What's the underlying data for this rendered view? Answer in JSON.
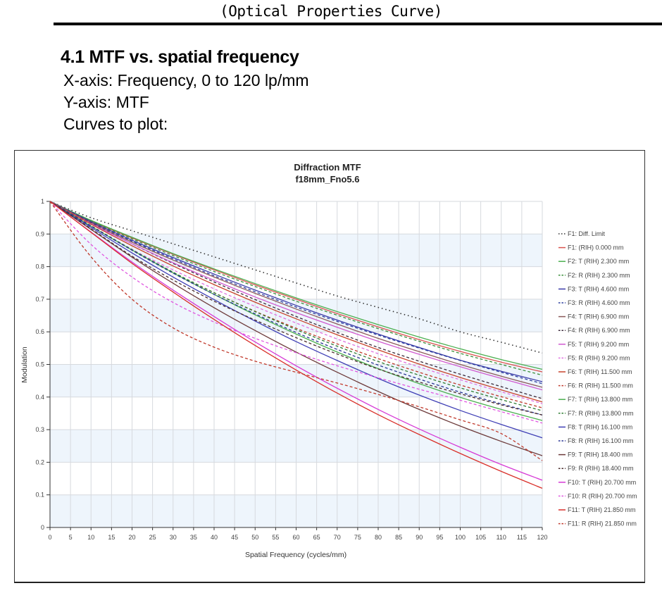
{
  "document": {
    "header": "(Optical Properties Curve)",
    "section_title": "4.1 MTF vs. spatial frequency",
    "lines": [
      "X-axis: Frequency, 0 to 120 lp/mm",
      "Y-axis: MTF",
      "Curves to plot:"
    ]
  },
  "chart_data": {
    "type": "line",
    "title": "Diffraction MTF",
    "subtitle": "f18mm_Fno5.6",
    "xlabel": "Spatial Frequency (cycles/mm)",
    "ylabel": "Modulation",
    "xlim": [
      0,
      120
    ],
    "ylim": [
      0,
      1
    ],
    "grid": true,
    "legend_position": "right",
    "x_ticks": [
      "0",
      "5",
      "10",
      "15",
      "20",
      "25",
      "30",
      "35",
      "40",
      "45",
      "50",
      "55",
      "60",
      "65",
      "70",
      "75",
      "80",
      "85",
      "90",
      "95",
      "100",
      "105",
      "110",
      "115",
      "120"
    ],
    "y_ticks": [
      "0",
      "0.1",
      "0.2",
      "0.3",
      "0.4",
      "0.5",
      "0.6",
      "0.7",
      "0.8",
      "0.9",
      "1"
    ],
    "x": [
      0,
      10,
      20,
      30,
      40,
      50,
      60,
      70,
      80,
      90,
      100,
      110,
      120
    ],
    "series": [
      {
        "name": "F1: Diff. Limit",
        "color": "#333333",
        "style": "dotted",
        "values": [
          1,
          0.95,
          0.91,
          0.87,
          0.83,
          0.79,
          0.75,
          0.71,
          0.675,
          0.64,
          0.6,
          0.568,
          0.535
        ]
      },
      {
        "name": "F1: (RIH) 0.000 mm",
        "color": "#d9534f",
        "style": "solid",
        "values": [
          1,
          0.94,
          0.888,
          0.838,
          0.79,
          0.744,
          0.7,
          0.656,
          0.615,
          0.576,
          0.54,
          0.507,
          0.477
        ]
      },
      {
        "name": "F2: T (RIH) 2.300 mm",
        "color": "#4caf50",
        "style": "solid",
        "values": [
          1,
          0.942,
          0.89,
          0.84,
          0.793,
          0.748,
          0.704,
          0.662,
          0.622,
          0.584,
          0.548,
          0.515,
          0.485
        ]
      },
      {
        "name": "F2: R (RIH) 2.300 mm",
        "color": "#3a8f3a",
        "style": "dashed",
        "values": [
          1,
          0.94,
          0.885,
          0.834,
          0.785,
          0.739,
          0.694,
          0.651,
          0.61,
          0.571,
          0.534,
          0.5,
          0.467
        ]
      },
      {
        "name": "F3: T (RIH) 4.600 mm",
        "color": "#3a3aa8",
        "style": "solid",
        "values": [
          1,
          0.938,
          0.881,
          0.828,
          0.777,
          0.728,
          0.681,
          0.636,
          0.593,
          0.552,
          0.513,
          0.479,
          0.447
        ]
      },
      {
        "name": "F3: R (RIH) 4.600 mm",
        "color": "#2c3e9e",
        "style": "dashed",
        "values": [
          1,
          0.936,
          0.878,
          0.824,
          0.772,
          0.723,
          0.676,
          0.632,
          0.59,
          0.55,
          0.512,
          0.476,
          0.441
        ]
      },
      {
        "name": "F4: T (RIH) 6.900 mm",
        "color": "#8b5a5a",
        "style": "solid",
        "values": [
          1,
          0.935,
          0.875,
          0.82,
          0.768,
          0.718,
          0.67,
          0.624,
          0.58,
          0.539,
          0.5,
          0.464,
          0.43
        ]
      },
      {
        "name": "F4: R (RIH) 6.900 mm",
        "color": "#3a2a3a",
        "style": "dashed",
        "values": [
          1,
          0.934,
          0.87,
          0.81,
          0.753,
          0.699,
          0.647,
          0.598,
          0.552,
          0.51,
          0.47,
          0.432,
          0.395
        ]
      },
      {
        "name": "F5: T (RIH) 9.200 mm",
        "color": "#d05ad0",
        "style": "solid",
        "values": [
          1,
          0.932,
          0.87,
          0.812,
          0.758,
          0.707,
          0.659,
          0.614,
          0.571,
          0.531,
          0.493,
          0.457,
          0.422
        ]
      },
      {
        "name": "F5: R (RIH) 9.200 mm",
        "color": "#e070e0",
        "style": "dashed",
        "values": [
          1,
          0.926,
          0.853,
          0.79,
          0.732,
          0.678,
          0.627,
          0.578,
          0.533,
          0.492,
          0.453,
          0.416,
          0.38
        ]
      },
      {
        "name": "F6: T (RIH) 11.500 mm",
        "color": "#c8442c",
        "style": "solid",
        "values": [
          1,
          0.93,
          0.864,
          0.802,
          0.745,
          0.691,
          0.64,
          0.591,
          0.545,
          0.501,
          0.46,
          0.422,
          0.385
        ]
      },
      {
        "name": "F6: R (RIH) 11.500 mm",
        "color": "#c0392b",
        "style": "dashed",
        "values": [
          1,
          0.925,
          0.851,
          0.782,
          0.72,
          0.663,
          0.611,
          0.563,
          0.518,
          0.476,
          0.437,
          0.401,
          0.367
        ]
      },
      {
        "name": "F7: T (RIH) 13.800 mm",
        "color": "#4caf50",
        "style": "solid",
        "values": [
          1,
          0.924,
          0.851,
          0.781,
          0.715,
          0.652,
          0.593,
          0.538,
          0.487,
          0.441,
          0.399,
          0.362,
          0.328
        ]
      },
      {
        "name": "F7: R (RIH) 13.800 mm",
        "color": "#2e7d32",
        "style": "dashed",
        "values": [
          1,
          0.925,
          0.852,
          0.783,
          0.72,
          0.662,
          0.607,
          0.556,
          0.509,
          0.467,
          0.428,
          0.392,
          0.358
        ]
      },
      {
        "name": "F8: T (RIH) 16.100 mm",
        "color": "#3f3fb5",
        "style": "solid",
        "values": [
          1,
          0.92,
          0.842,
          0.768,
          0.699,
          0.633,
          0.57,
          0.512,
          0.457,
          0.406,
          0.359,
          0.316,
          0.275
        ]
      },
      {
        "name": "F8: R (RIH) 16.100 mm",
        "color": "#283593",
        "style": "dashed",
        "values": [
          1,
          0.924,
          0.85,
          0.78,
          0.715,
          0.655,
          0.598,
          0.546,
          0.498,
          0.455,
          0.415,
          0.379,
          0.345
        ]
      },
      {
        "name": "F9: T (RIH) 18.400 mm",
        "color": "#6d3b3b",
        "style": "solid",
        "values": [
          1,
          0.914,
          0.829,
          0.749,
          0.674,
          0.604,
          0.538,
          0.476,
          0.417,
          0.362,
          0.311,
          0.264,
          0.22
        ]
      },
      {
        "name": "F9: R (RIH) 18.400 mm",
        "color": "#4a2c2c",
        "style": "dashed",
        "values": [
          1,
          0.916,
          0.832,
          0.759,
          0.694,
          0.636,
          0.582,
          0.532,
          0.486,
          0.446,
          0.41,
          0.376,
          0.345
        ]
      },
      {
        "name": "F10: T (RIH) 20.700 mm",
        "color": "#d63ad6",
        "style": "solid",
        "values": [
          1,
          0.906,
          0.814,
          0.728,
          0.647,
          0.569,
          0.496,
          0.427,
          0.362,
          0.302,
          0.246,
          0.193,
          0.145
        ]
      },
      {
        "name": "F10: R (RIH) 20.700 mm",
        "color": "#e055e0",
        "style": "dashed",
        "values": [
          1,
          0.868,
          0.768,
          0.69,
          0.63,
          0.58,
          0.536,
          0.496,
          0.459,
          0.424,
          0.39,
          0.355,
          0.32
        ]
      },
      {
        "name": "F11: T (RIH) 21.850 mm",
        "color": "#d9302a",
        "style": "solid",
        "values": [
          1,
          0.905,
          0.81,
          0.722,
          0.638,
          0.558,
          0.483,
          0.412,
          0.346,
          0.285,
          0.227,
          0.172,
          0.12
        ]
      },
      {
        "name": "F11: R (RIH) 21.850 mm",
        "color": "#c0392b",
        "style": "dashed",
        "values": [
          1,
          0.83,
          0.7,
          0.612,
          0.553,
          0.51,
          0.476,
          0.443,
          0.408,
          0.37,
          0.33,
          0.288,
          0.205
        ]
      }
    ]
  }
}
